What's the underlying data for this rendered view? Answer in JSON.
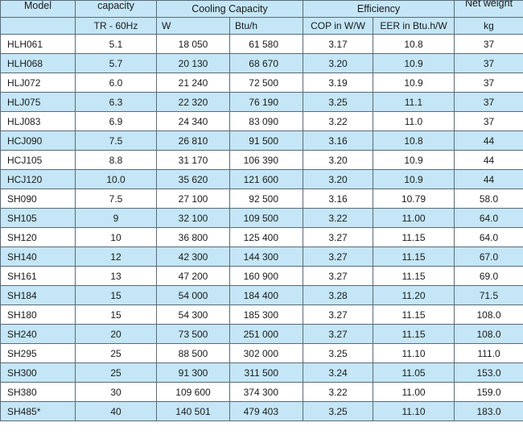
{
  "header": {
    "model": "Model",
    "capacity": "capacity",
    "capacity_unit": "TR - 60Hz",
    "cooling_capacity": "Cooling Capacity",
    "cooling_w": "W",
    "cooling_btu": "Btu/h",
    "efficiency": "Efficiency",
    "cop": "COP in W/W",
    "eer": "EER in Btu.h/W",
    "net_weight": "Net weight",
    "weight_unit": "kg"
  },
  "rows": [
    {
      "model": "HLH061",
      "tr": "5.1",
      "w": "18 050",
      "btu": "61 580",
      "cop": "3.17",
      "eer": "10.8",
      "kg": "37"
    },
    {
      "model": "HLH068",
      "tr": "5.7",
      "w": "20 130",
      "btu": "68 670",
      "cop": "3.20",
      "eer": "10.9",
      "kg": "37"
    },
    {
      "model": "HLJ072",
      "tr": "6.0",
      "w": "21 240",
      "btu": "72 500",
      "cop": "3.19",
      "eer": "10.9",
      "kg": "37"
    },
    {
      "model": "HLJ075",
      "tr": "6.3",
      "w": "22 320",
      "btu": "76 190",
      "cop": "3.25",
      "eer": "11.1",
      "kg": "37"
    },
    {
      "model": "HLJ083",
      "tr": "6.9",
      "w": "24 340",
      "btu": "83 090",
      "cop": "3.22",
      "eer": "11.0",
      "kg": "37"
    },
    {
      "model": "HCJ090",
      "tr": "7.5",
      "w": "26 810",
      "btu": "91 500",
      "cop": "3.16",
      "eer": "10.8",
      "kg": "44"
    },
    {
      "model": "HCJ105",
      "tr": "8.8",
      "w": "31 170",
      "btu": "106 390",
      "cop": "3.20",
      "eer": "10.9",
      "kg": "44"
    },
    {
      "model": "HCJ120",
      "tr": "10.0",
      "w": "35 620",
      "btu": "121 600",
      "cop": "3.20",
      "eer": "10.9",
      "kg": "44"
    },
    {
      "model": "SH090",
      "tr": "7.5",
      "w": "27 100",
      "btu": "92 500",
      "cop": "3.16",
      "eer": "10.79",
      "kg": "58.0"
    },
    {
      "model": "SH105",
      "tr": "9",
      "w": "32 100",
      "btu": "109 500",
      "cop": "3.22",
      "eer": "11.00",
      "kg": "64.0"
    },
    {
      "model": "SH120",
      "tr": "10",
      "w": "36 800",
      "btu": "125 400",
      "cop": "3.27",
      "eer": "11.15",
      "kg": "64.0"
    },
    {
      "model": "SH140",
      "tr": "12",
      "w": "42 300",
      "btu": "144 300",
      "cop": "3.27",
      "eer": "11.15",
      "kg": "67.0"
    },
    {
      "model": "SH161",
      "tr": "13",
      "w": "47 200",
      "btu": "160 900",
      "cop": "3.27",
      "eer": "11.15",
      "kg": "69.0"
    },
    {
      "model": "SH184",
      "tr": "15",
      "w": "54 000",
      "btu": "184 400",
      "cop": "3.28",
      "eer": "11.20",
      "kg": "71.5"
    },
    {
      "model": "SH180",
      "tr": "15",
      "w": "54 300",
      "btu": "185 300",
      "cop": "3.27",
      "eer": "11.15",
      "kg": "108.0"
    },
    {
      "model": "SH240",
      "tr": "20",
      "w": "73 500",
      "btu": "251 000",
      "cop": "3.27",
      "eer": "11.15",
      "kg": "108.0"
    },
    {
      "model": "SH295",
      "tr": "25",
      "w": "88 500",
      "btu": "302 000",
      "cop": "3.25",
      "eer": "11.10",
      "kg": "111.0"
    },
    {
      "model": "SH300",
      "tr": "25",
      "w": "91 300",
      "btu": "311 500",
      "cop": "3.24",
      "eer": "11.05",
      "kg": "153.0"
    },
    {
      "model": "SH380",
      "tr": "30",
      "w": "109 600",
      "btu": "374 300",
      "cop": "3.22",
      "eer": "11.00",
      "kg": "159.0"
    },
    {
      "model": "SH485*",
      "tr": "40",
      "w": "140 501",
      "btu": "479 403",
      "cop": "3.25",
      "eer": "11.10",
      "kg": "183.0"
    }
  ]
}
